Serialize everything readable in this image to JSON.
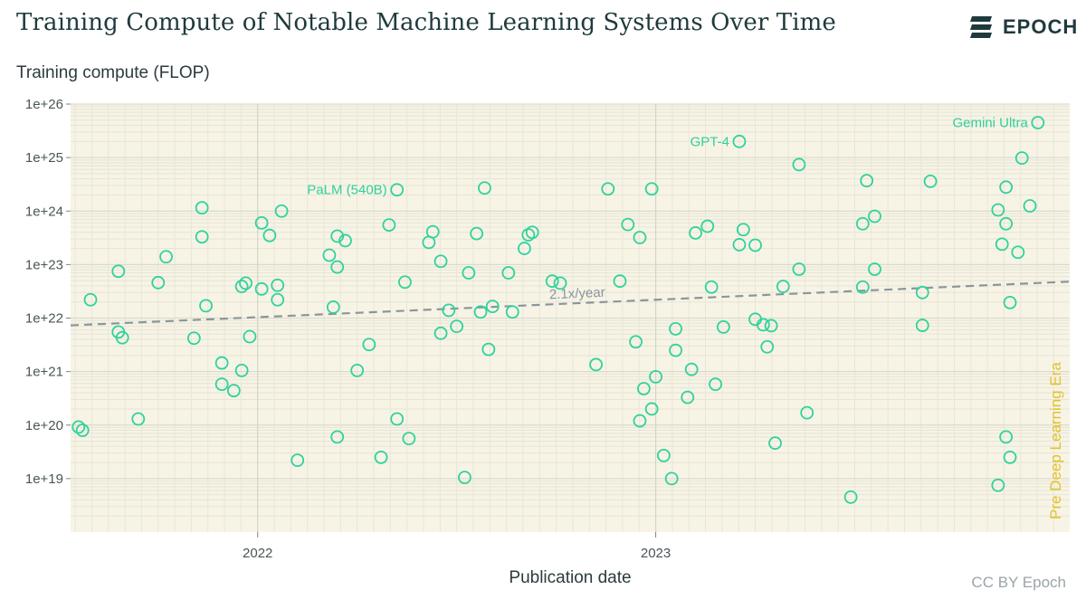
{
  "header": {
    "title": "Training Compute of Notable Machine Learning Systems Over Time",
    "logo_text": "EPOCH"
  },
  "footer": {
    "credit": "CC BY Epoch"
  },
  "colors": {
    "plot_background": "#f7f4e6",
    "point": "#2fd29d",
    "trend": "#8a969c",
    "era_label": "#e2c22a",
    "annotation": "#2fcf9c"
  },
  "chart_data": {
    "type": "scatter",
    "title": "Training Compute of Notable Machine Learning Systems Over Time",
    "xlabel": "Publication date",
    "ylabel": "Training compute (FLOP)",
    "yscale": "log",
    "xlim": [
      2021.53,
      2024.04
    ],
    "ylim": [
      1e+18,
      1e+26
    ],
    "x_ticks": [
      2022,
      2023
    ],
    "x_tick_labels": [
      "2022",
      "2023"
    ],
    "y_ticks": [
      1e+19,
      1e+20,
      1e+21,
      1e+22,
      1e+23,
      1e+24,
      1e+25,
      1e+26
    ],
    "y_tick_labels": [
      "1e+19",
      "1e+20",
      "1e+21",
      "1e+22",
      "1e+23",
      "1e+24",
      "1e+25",
      "1e+26"
    ],
    "grid": true,
    "legend": "none",
    "trend": {
      "label": "2.1x/year",
      "x": [
        2021.53,
        2024.04
      ],
      "y": [
        7.3e+21,
        4.8e+22
      ]
    },
    "era_label": "Pre Deep Learning Era",
    "points": [
      {
        "x": 2021.55,
        "y": 9.2e+19
      },
      {
        "x": 2021.56,
        "y": 8e+19
      },
      {
        "x": 2021.58,
        "y": 2.2e+22
      },
      {
        "x": 2021.65,
        "y": 7.5e+22
      },
      {
        "x": 2021.65,
        "y": 5.5e+21
      },
      {
        "x": 2021.66,
        "y": 4.3e+21
      },
      {
        "x": 2021.7,
        "y": 1.3e+20
      },
      {
        "x": 2021.75,
        "y": 4.6e+22
      },
      {
        "x": 2021.77,
        "y": 1.4e+23
      },
      {
        "x": 2021.84,
        "y": 4.2e+21
      },
      {
        "x": 2021.86,
        "y": 1.15e+24
      },
      {
        "x": 2021.86,
        "y": 3.3e+23
      },
      {
        "x": 2021.87,
        "y": 1.7e+22
      },
      {
        "x": 2021.91,
        "y": 1.45e+21
      },
      {
        "x": 2021.91,
        "y": 5.8e+20
      },
      {
        "x": 2021.94,
        "y": 4.4e+20
      },
      {
        "x": 2021.96,
        "y": 1.05e+21
      },
      {
        "x": 2021.96,
        "y": 3.9e+22
      },
      {
        "x": 2021.97,
        "y": 4.5e+22
      },
      {
        "x": 2021.98,
        "y": 4.5e+21
      },
      {
        "x": 2022.01,
        "y": 3.5e+22
      },
      {
        "x": 2022.01,
        "y": 6e+23
      },
      {
        "x": 2022.03,
        "y": 3.5e+23
      },
      {
        "x": 2022.05,
        "y": 4.1e+22
      },
      {
        "x": 2022.05,
        "y": 2.2e+22
      },
      {
        "x": 2022.06,
        "y": 1e+24
      },
      {
        "x": 2022.1,
        "y": 2.2e+19
      },
      {
        "x": 2022.18,
        "y": 1.5e+23
      },
      {
        "x": 2022.19,
        "y": 1.6e+22
      },
      {
        "x": 2022.2,
        "y": 9e+22
      },
      {
        "x": 2022.2,
        "y": 3.4e+23
      },
      {
        "x": 2022.2,
        "y": 6e+19
      },
      {
        "x": 2022.22,
        "y": 2.8e+23
      },
      {
        "x": 2022.25,
        "y": 1.05e+21
      },
      {
        "x": 2022.28,
        "y": 3.2e+21
      },
      {
        "x": 2022.31,
        "y": 2.5e+19
      },
      {
        "x": 2022.33,
        "y": 5.5e+23
      },
      {
        "x": 2022.35,
        "y": 1.3e+20
      },
      {
        "x": 2022.35,
        "y": 2.5e+24
      },
      {
        "x": 2022.37,
        "y": 4.7e+22
      },
      {
        "x": 2022.38,
        "y": 5.6e+19
      },
      {
        "x": 2022.43,
        "y": 2.6e+23
      },
      {
        "x": 2022.44,
        "y": 4.1e+23
      },
      {
        "x": 2022.46,
        "y": 1.15e+23
      },
      {
        "x": 2022.46,
        "y": 5.2e+21
      },
      {
        "x": 2022.48,
        "y": 1.4e+22
      },
      {
        "x": 2022.5,
        "y": 7e+21
      },
      {
        "x": 2022.52,
        "y": 1.05e+19
      },
      {
        "x": 2022.53,
        "y": 7e+22
      },
      {
        "x": 2022.55,
        "y": 3.8e+23
      },
      {
        "x": 2022.56,
        "y": 1.3e+22
      },
      {
        "x": 2022.57,
        "y": 2.7e+24
      },
      {
        "x": 2022.58,
        "y": 2.6e+21
      },
      {
        "x": 2022.59,
        "y": 1.65e+22
      },
      {
        "x": 2022.63,
        "y": 7e+22
      },
      {
        "x": 2022.64,
        "y": 1.3e+22
      },
      {
        "x": 2022.67,
        "y": 2e+23
      },
      {
        "x": 2022.68,
        "y": 3.6e+23
      },
      {
        "x": 2022.69,
        "y": 4e+23
      },
      {
        "x": 2022.74,
        "y": 4.9e+22
      },
      {
        "x": 2022.76,
        "y": 4.5e+22
      },
      {
        "x": 2022.85,
        "y": 1.35e+21
      },
      {
        "x": 2022.88,
        "y": 2.6e+24
      },
      {
        "x": 2022.91,
        "y": 4.9e+22
      },
      {
        "x": 2022.93,
        "y": 5.6e+23
      },
      {
        "x": 2022.95,
        "y": 3.6e+21
      },
      {
        "x": 2022.96,
        "y": 3.2e+23
      },
      {
        "x": 2022.96,
        "y": 1.2e+20
      },
      {
        "x": 2022.97,
        "y": 4.8e+20
      },
      {
        "x": 2022.99,
        "y": 2e+20
      },
      {
        "x": 2022.99,
        "y": 2.6e+24
      },
      {
        "x": 2023.0,
        "y": 8e+20
      },
      {
        "x": 2023.02,
        "y": 2.7e+19
      },
      {
        "x": 2023.04,
        "y": 1e+19
      },
      {
        "x": 2023.05,
        "y": 6.3e+21
      },
      {
        "x": 2023.05,
        "y": 2.5e+21
      },
      {
        "x": 2023.08,
        "y": 3.3e+20
      },
      {
        "x": 2023.09,
        "y": 1.1e+21
      },
      {
        "x": 2023.1,
        "y": 3.9e+23
      },
      {
        "x": 2023.13,
        "y": 5.2e+23
      },
      {
        "x": 2023.14,
        "y": 3.8e+22
      },
      {
        "x": 2023.15,
        "y": 5.8e+20
      },
      {
        "x": 2023.17,
        "y": 6.8e+21
      },
      {
        "x": 2023.21,
        "y": 2.35e+23
      },
      {
        "x": 2023.21,
        "y": 2e+25
      },
      {
        "x": 2023.22,
        "y": 4.5e+23
      },
      {
        "x": 2023.25,
        "y": 2.3e+23
      },
      {
        "x": 2023.25,
        "y": 9.5e+21
      },
      {
        "x": 2023.27,
        "y": 7.5e+21
      },
      {
        "x": 2023.28,
        "y": 2.9e+21
      },
      {
        "x": 2023.29,
        "y": 7.2e+21
      },
      {
        "x": 2023.3,
        "y": 4.6e+19
      },
      {
        "x": 2023.32,
        "y": 3.9e+22
      },
      {
        "x": 2023.36,
        "y": 8.2e+22
      },
      {
        "x": 2023.36,
        "y": 7.4e+24
      },
      {
        "x": 2023.38,
        "y": 1.7e+20
      },
      {
        "x": 2023.49,
        "y": 4.5e+18
      },
      {
        "x": 2023.52,
        "y": 3.8e+22
      },
      {
        "x": 2023.52,
        "y": 5.8e+23
      },
      {
        "x": 2023.53,
        "y": 3.7e+24
      },
      {
        "x": 2023.55,
        "y": 8.2e+22
      },
      {
        "x": 2023.55,
        "y": 8e+23
      },
      {
        "x": 2023.67,
        "y": 3e+22
      },
      {
        "x": 2023.67,
        "y": 7.3e+21
      },
      {
        "x": 2023.69,
        "y": 3.6e+24
      },
      {
        "x": 2023.86,
        "y": 7.5e+18
      },
      {
        "x": 2023.86,
        "y": 1.05e+24
      },
      {
        "x": 2023.87,
        "y": 2.4e+23
      },
      {
        "x": 2023.88,
        "y": 5.8e+23
      },
      {
        "x": 2023.88,
        "y": 2.8e+24
      },
      {
        "x": 2023.88,
        "y": 6e+19
      },
      {
        "x": 2023.89,
        "y": 1.95e+22
      },
      {
        "x": 2023.89,
        "y": 2.5e+19
      },
      {
        "x": 2023.91,
        "y": 1.7e+23
      },
      {
        "x": 2023.92,
        "y": 9.8e+24
      },
      {
        "x": 2023.94,
        "y": 1.25e+24
      },
      {
        "x": 2023.96,
        "y": 4.5e+25
      }
    ],
    "annotations": [
      {
        "label": "Gemini Ultra",
        "x": 2023.96,
        "y": 4.5e+25
      },
      {
        "label": "GPT-4",
        "x": 2023.21,
        "y": 2e+25
      },
      {
        "label": "PaLM (540B)",
        "x": 2022.35,
        "y": 2.5e+24
      }
    ]
  }
}
